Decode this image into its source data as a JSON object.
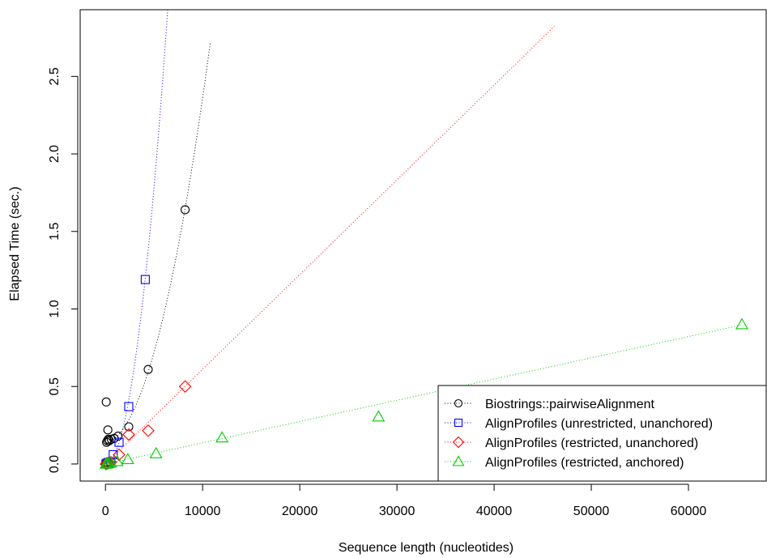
{
  "chart_data": {
    "type": "scatter",
    "title": "",
    "xlabel": "Sequence length (nucleotides)",
    "ylabel": "Elapsed Time (sec.)",
    "xlim": [
      -2600,
      68000
    ],
    "ylim": [
      -0.11,
      2.93
    ],
    "x_ticks": [
      {
        "value": 0,
        "label": "0"
      },
      {
        "value": 10000,
        "label": "10000"
      },
      {
        "value": 20000,
        "label": "20000"
      },
      {
        "value": 30000,
        "label": "30000"
      },
      {
        "value": 40000,
        "label": "40000"
      },
      {
        "value": 50000,
        "label": "50000"
      },
      {
        "value": 60000,
        "label": "60000"
      }
    ],
    "y_ticks": [
      {
        "value": 0.0,
        "label": "0.0"
      },
      {
        "value": 0.5,
        "label": "0.5"
      },
      {
        "value": 1.0,
        "label": "1.0"
      },
      {
        "value": 1.5,
        "label": "1.5"
      },
      {
        "value": 2.0,
        "label": "2.0"
      },
      {
        "value": 2.5,
        "label": "2.5"
      }
    ],
    "grid": false,
    "legend_position": "bottom-right",
    "series": [
      {
        "name": "Biostrings::pairwiseAlignment",
        "color": "#000000",
        "marker": "circle",
        "points": [
          [
            20,
            0.0
          ],
          [
            50,
            0.004
          ],
          [
            80,
            0.4
          ],
          [
            120,
            0.14
          ],
          [
            200,
            0.15
          ],
          [
            250,
            0.22
          ],
          [
            300,
            0.16
          ],
          [
            400,
            0.15
          ],
          [
            600,
            0.16
          ],
          [
            900,
            0.165
          ],
          [
            1300,
            0.18
          ],
          [
            2400,
            0.24
          ],
          [
            4400,
            0.61
          ],
          [
            8200,
            1.64
          ]
        ],
        "fit": {
          "kind": "quadratic",
          "coef": [
            0.135,
            1.15e-05,
            2.11e-08
          ],
          "x_range": [
            0,
            10800
          ]
        }
      },
      {
        "name": "AlignProfiles (unrestricted, unanchored)",
        "color": "#0000ff",
        "marker": "square",
        "points": [
          [
            50,
            0.0
          ],
          [
            150,
            0.005
          ],
          [
            300,
            0.01
          ],
          [
            550,
            0.015
          ],
          [
            800,
            0.06
          ],
          [
            1400,
            0.14
          ],
          [
            2400,
            0.37
          ],
          [
            4100,
            1.19
          ]
        ],
        "fit": {
          "kind": "quadratic",
          "coef": [
            0.0,
            0.0,
            7.14e-08
          ],
          "x_range": [
            0,
            6500
          ]
        }
      },
      {
        "name": "AlignProfiles (restricted, unanchored)",
        "color": "#ff0000",
        "marker": "diamond",
        "points": [
          [
            50,
            0.0
          ],
          [
            150,
            0.003
          ],
          [
            300,
            0.006
          ],
          [
            550,
            0.012
          ],
          [
            1400,
            0.06
          ],
          [
            2400,
            0.19
          ],
          [
            4400,
            0.215
          ],
          [
            8200,
            0.5
          ]
        ],
        "fit": {
          "kind": "linear",
          "coef": [
            0.0,
            6.11e-05
          ],
          "x_range": [
            0,
            46200
          ]
        }
      },
      {
        "name": "AlignProfiles (restricted, anchored)",
        "color": "#00cc00",
        "marker": "triangle",
        "points": [
          [
            50,
            0.0
          ],
          [
            150,
            0.002
          ],
          [
            300,
            0.004
          ],
          [
            550,
            0.008
          ],
          [
            1200,
            0.017
          ],
          [
            2300,
            0.03
          ],
          [
            5200,
            0.068
          ],
          [
            12000,
            0.17
          ],
          [
            28100,
            0.305
          ],
          [
            65500,
            0.9
          ]
        ],
        "fit": {
          "kind": "linear",
          "coef": [
            0.0,
            1.37e-05
          ],
          "x_range": [
            0,
            65500
          ]
        }
      }
    ]
  }
}
